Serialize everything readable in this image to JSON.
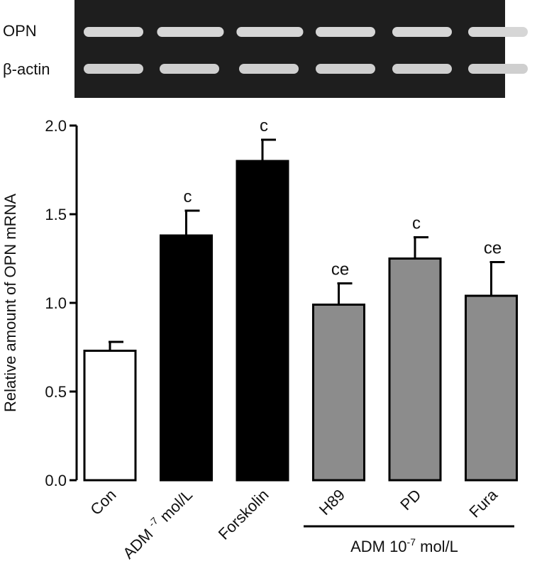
{
  "gel": {
    "row_labels": [
      "OPN",
      "β-actin"
    ],
    "lanes": 6
  },
  "chart_data": {
    "type": "bar",
    "categories": [
      "Con",
      "ADM -7 mol/L",
      "Forskolin",
      "H89",
      "PD",
      "Fura"
    ],
    "category_labels": [
      {
        "main": "Con",
        "sup": "",
        "rest": ""
      },
      {
        "main": "ADM ",
        "sup": "-7",
        "rest": " mol/L"
      },
      {
        "main": "Forskolin",
        "sup": "",
        "rest": ""
      },
      {
        "main": "H89",
        "sup": "",
        "rest": ""
      },
      {
        "main": "PD",
        "sup": "",
        "rest": ""
      },
      {
        "main": "Fura",
        "sup": "",
        "rest": ""
      }
    ],
    "values": [
      0.73,
      1.38,
      1.8,
      0.99,
      1.25,
      1.04
    ],
    "errors": [
      0.05,
      0.14,
      0.12,
      0.12,
      0.12,
      0.19
    ],
    "significance": [
      "",
      "c",
      "c",
      "ce",
      "c",
      "ce"
    ],
    "bar_colors": [
      "#ffffff",
      "#000000",
      "#000000",
      "#8c8c8c",
      "#8c8c8c",
      "#8c8c8c"
    ],
    "ylabel": "Relative amount of OPN mRNA",
    "ylim": [
      0.0,
      2.0
    ],
    "yticks": [
      "0.0",
      "0.5",
      "1.0",
      "1.5",
      "2.0"
    ],
    "group_label": {
      "main": "ADM 10",
      "sup": "-7",
      "rest": " mol/L"
    },
    "group_categories": [
      "H89",
      "PD",
      "Fura"
    ],
    "grid": false
  }
}
